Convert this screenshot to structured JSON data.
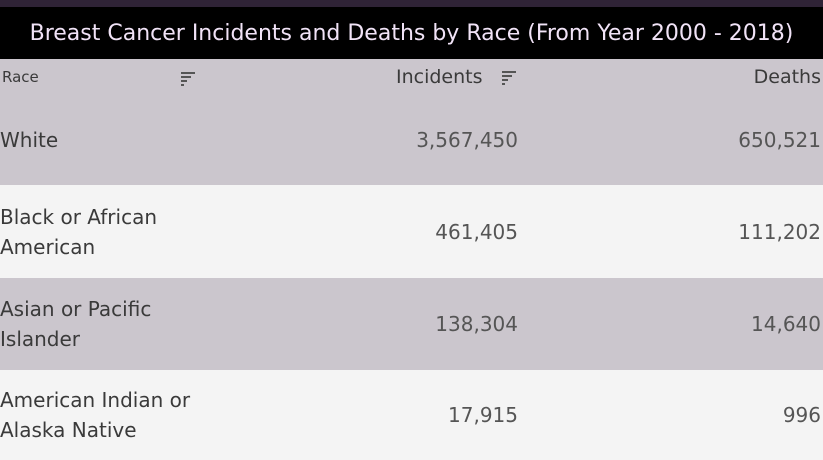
{
  "title": "Breast Cancer Incidents and Deaths by Race (From Year 2000 - 2018)",
  "chart_data": {
    "type": "table",
    "title": "Breast Cancer Incidents and Deaths by Race (From Year 2000 - 2018)",
    "columns": [
      "Race",
      "Incidents",
      "Deaths"
    ],
    "rows": [
      {
        "race": "White",
        "incidents": "3,567,450",
        "deaths": "650,521"
      },
      {
        "race": "Black or African American",
        "incidents": "461,405",
        "deaths": "111,202"
      },
      {
        "race": "Asian or Pacific Islander",
        "incidents": "138,304",
        "deaths": "14,640"
      },
      {
        "race": "American Indian or Alaska Native",
        "incidents": "17,915",
        "deaths": "996"
      }
    ]
  },
  "icons": {
    "race_sort": "sort-icon",
    "incidents_sort": "sort-icon"
  },
  "colors": {
    "title_bg": "#000000",
    "title_text": "#f1e3f7",
    "band": "#cbc6cd",
    "alt_band": "#f4f4f4"
  }
}
